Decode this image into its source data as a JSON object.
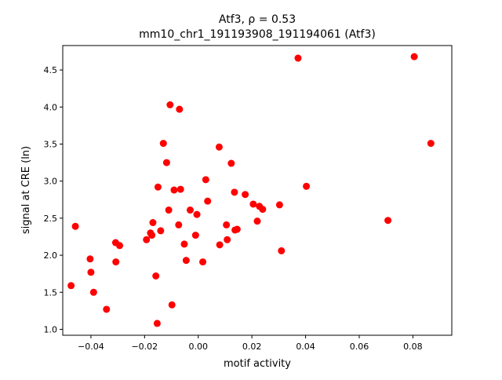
{
  "chart_data": {
    "type": "scatter",
    "title_line1": "Atf3, ρ = 0.53",
    "title_line2": "mm10_chr1_191193908_191194061 (Atf3)",
    "xlabel": "motif activity",
    "ylabel": "signal at CRE (ln)",
    "xlim": [
      -0.0505,
      0.0945
    ],
    "ylim": [
      0.92,
      4.83
    ],
    "x_ticks": [
      -0.04,
      -0.02,
      0.0,
      0.02,
      0.04,
      0.06,
      0.08
    ],
    "x_tick_labels": [
      "−0.04",
      "−0.02",
      "0.00",
      "0.02",
      "0.04",
      "0.06",
      "0.08"
    ],
    "y_ticks": [
      1.0,
      1.5,
      2.0,
      2.5,
      3.0,
      3.5,
      4.0,
      4.5
    ],
    "y_tick_labels": [
      "1.0",
      "1.5",
      "2.0",
      "2.5",
      "3.0",
      "3.5",
      "4.0",
      "4.5"
    ],
    "grid": false,
    "marker_color": "#ff0000",
    "points": [
      {
        "x": -0.0474,
        "y": 1.59
      },
      {
        "x": -0.0458,
        "y": 2.39
      },
      {
        "x": -0.0403,
        "y": 1.95
      },
      {
        "x": -0.04,
        "y": 1.77
      },
      {
        "x": -0.039,
        "y": 1.5
      },
      {
        "x": -0.0342,
        "y": 1.27
      },
      {
        "x": -0.0308,
        "y": 2.17
      },
      {
        "x": -0.0307,
        "y": 1.91
      },
      {
        "x": -0.0293,
        "y": 2.13
      },
      {
        "x": -0.0193,
        "y": 2.21
      },
      {
        "x": -0.0178,
        "y": 2.3
      },
      {
        "x": -0.0173,
        "y": 2.27
      },
      {
        "x": -0.0169,
        "y": 2.44
      },
      {
        "x": -0.0158,
        "y": 1.72
      },
      {
        "x": -0.0153,
        "y": 1.08
      },
      {
        "x": -0.015,
        "y": 2.92
      },
      {
        "x": -0.014,
        "y": 2.33
      },
      {
        "x": -0.013,
        "y": 3.51
      },
      {
        "x": -0.0118,
        "y": 3.25
      },
      {
        "x": -0.011,
        "y": 2.61
      },
      {
        "x": -0.0105,
        "y": 4.03
      },
      {
        "x": -0.0098,
        "y": 1.33
      },
      {
        "x": -0.009,
        "y": 2.88
      },
      {
        "x": -0.0073,
        "y": 2.41
      },
      {
        "x": -0.007,
        "y": 3.97
      },
      {
        "x": -0.0066,
        "y": 2.89
      },
      {
        "x": -0.0052,
        "y": 2.15
      },
      {
        "x": -0.0045,
        "y": 1.93
      },
      {
        "x": -0.003,
        "y": 2.61
      },
      {
        "x": -0.001,
        "y": 2.27
      },
      {
        "x": -0.0005,
        "y": 2.55
      },
      {
        "x": 0.0017,
        "y": 1.91
      },
      {
        "x": 0.0028,
        "y": 3.02
      },
      {
        "x": 0.0035,
        "y": 2.73
      },
      {
        "x": 0.0078,
        "y": 3.46
      },
      {
        "x": 0.008,
        "y": 2.14
      },
      {
        "x": 0.0105,
        "y": 2.41
      },
      {
        "x": 0.0108,
        "y": 2.21
      },
      {
        "x": 0.0123,
        "y": 3.24
      },
      {
        "x": 0.0135,
        "y": 2.85
      },
      {
        "x": 0.0137,
        "y": 2.34
      },
      {
        "x": 0.0145,
        "y": 2.35
      },
      {
        "x": 0.0175,
        "y": 2.82
      },
      {
        "x": 0.0205,
        "y": 2.69
      },
      {
        "x": 0.022,
        "y": 2.46
      },
      {
        "x": 0.0228,
        "y": 2.66
      },
      {
        "x": 0.024,
        "y": 2.62
      },
      {
        "x": 0.0303,
        "y": 2.68
      },
      {
        "x": 0.031,
        "y": 2.06
      },
      {
        "x": 0.0372,
        "y": 4.66
      },
      {
        "x": 0.0403,
        "y": 2.93
      },
      {
        "x": 0.0707,
        "y": 2.47
      },
      {
        "x": 0.0805,
        "y": 4.68
      },
      {
        "x": 0.0867,
        "y": 3.51
      }
    ]
  }
}
